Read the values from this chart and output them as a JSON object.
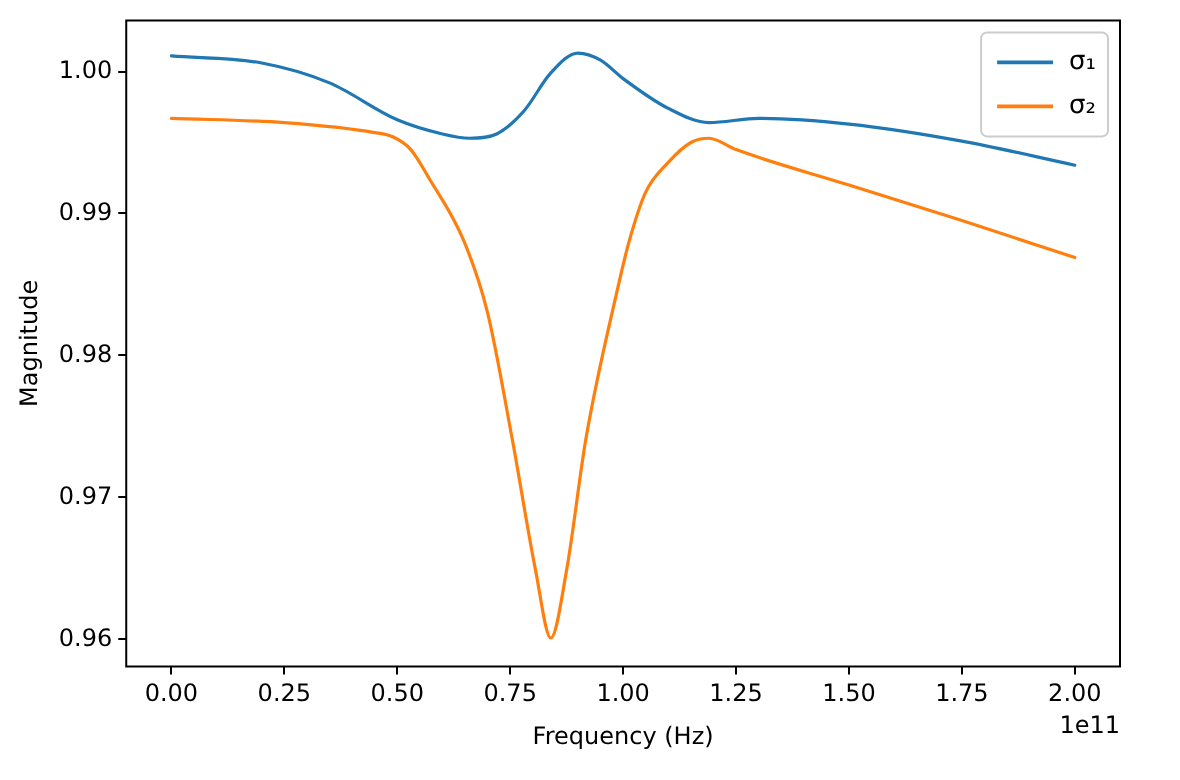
{
  "chart_data": {
    "type": "line",
    "xlabel": "Frequency (Hz)",
    "ylabel": "Magnitude",
    "annotations": [
      "1e11"
    ],
    "xlim": [
      -0.1,
      2.1
    ],
    "ylim": [
      0.9581,
      1.0036
    ],
    "xticks": [
      {
        "value": 0,
        "label": "0.00"
      },
      {
        "value": 0.25,
        "label": "0.25"
      },
      {
        "value": 0.5,
        "label": "0.50"
      },
      {
        "value": 0.75,
        "label": "0.75"
      },
      {
        "value": 1.0,
        "label": "1.00"
      },
      {
        "value": 1.25,
        "label": "1.25"
      },
      {
        "value": 1.5,
        "label": "1.50"
      },
      {
        "value": 1.75,
        "label": "1.75"
      },
      {
        "value": 2.0,
        "label": "2.00"
      }
    ],
    "yticks": [
      {
        "value": 0.96,
        "label": "0.96"
      },
      {
        "value": 0.97,
        "label": "0.97"
      },
      {
        "value": 0.98,
        "label": "0.98"
      },
      {
        "value": 0.99,
        "label": "0.99"
      },
      {
        "value": 1.0,
        "label": "1.00"
      }
    ],
    "grid": false,
    "legend": "top right",
    "marker": "none",
    "line_style": "solid",
    "series": [
      {
        "name": "σ₁",
        "color": "#1f77b4",
        "x": [
          0,
          0.2,
          0.35,
          0.5,
          0.6,
          0.66,
          0.72,
          0.78,
          0.84,
          0.9,
          0.95,
          1.0,
          1.1,
          1.19,
          1.3,
          1.5,
          1.75,
          2.0
        ],
        "values": [
          1.0011,
          1.0006,
          0.9992,
          0.9966,
          0.9956,
          0.9953,
          0.9956,
          0.9972,
          0.9999,
          1.0013,
          1.0008,
          0.9995,
          0.9974,
          0.9964,
          0.9967,
          0.9963,
          0.9951,
          0.9934
        ]
      },
      {
        "name": "σ₂",
        "color": "#ff7f0e",
        "x": [
          0,
          0.25,
          0.45,
          0.49,
          0.53,
          0.57,
          0.647,
          0.7,
          0.754,
          0.806,
          0.84,
          0.875,
          0.918,
          0.99,
          1.013,
          1.05,
          1.1,
          1.15,
          1.19,
          1.25,
          1.5,
          1.75,
          2.0
        ],
        "values": [
          0.9967,
          0.9964,
          0.9957,
          0.9954,
          0.9945,
          0.9925,
          0.9881,
          0.983,
          0.9742,
          0.9649,
          0.9601,
          0.9649,
          0.9742,
          0.985,
          0.988,
          0.9915,
          0.9936,
          0.995,
          0.9953,
          0.9945,
          0.992,
          0.9895,
          0.9869
        ]
      }
    ]
  }
}
